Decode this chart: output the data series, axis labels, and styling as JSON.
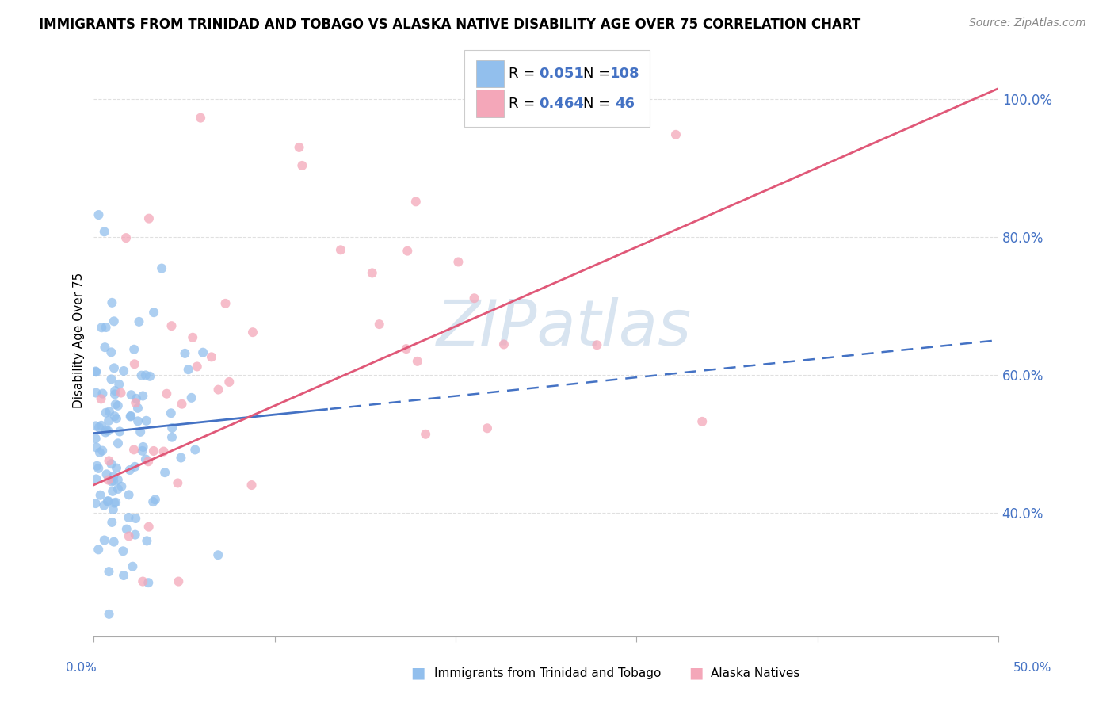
{
  "title": "IMMIGRANTS FROM TRINIDAD AND TOBAGO VS ALASKA NATIVE DISABILITY AGE OVER 75 CORRELATION CHART",
  "source": "Source: ZipAtlas.com",
  "ylabel": "Disability Age Over 75",
  "y_ticks": [
    0.4,
    0.6,
    0.8,
    1.0
  ],
  "y_tick_labels": [
    "40.0%",
    "60.0%",
    "80.0%",
    "100.0%"
  ],
  "x_range": [
    0.0,
    0.5
  ],
  "y_range": [
    0.22,
    1.08
  ],
  "legend_blue_R": "0.051",
  "legend_blue_N": "108",
  "legend_pink_R": "0.464",
  "legend_pink_N": "46",
  "blue_color": "#92BFED",
  "pink_color": "#F4A7B9",
  "blue_line_color": "#4472C4",
  "pink_line_color": "#E05878",
  "watermark": "ZIPatlas",
  "watermark_color": "#D8E4F0",
  "tick_color": "#4472C4",
  "grid_color": "#E0E0E0"
}
